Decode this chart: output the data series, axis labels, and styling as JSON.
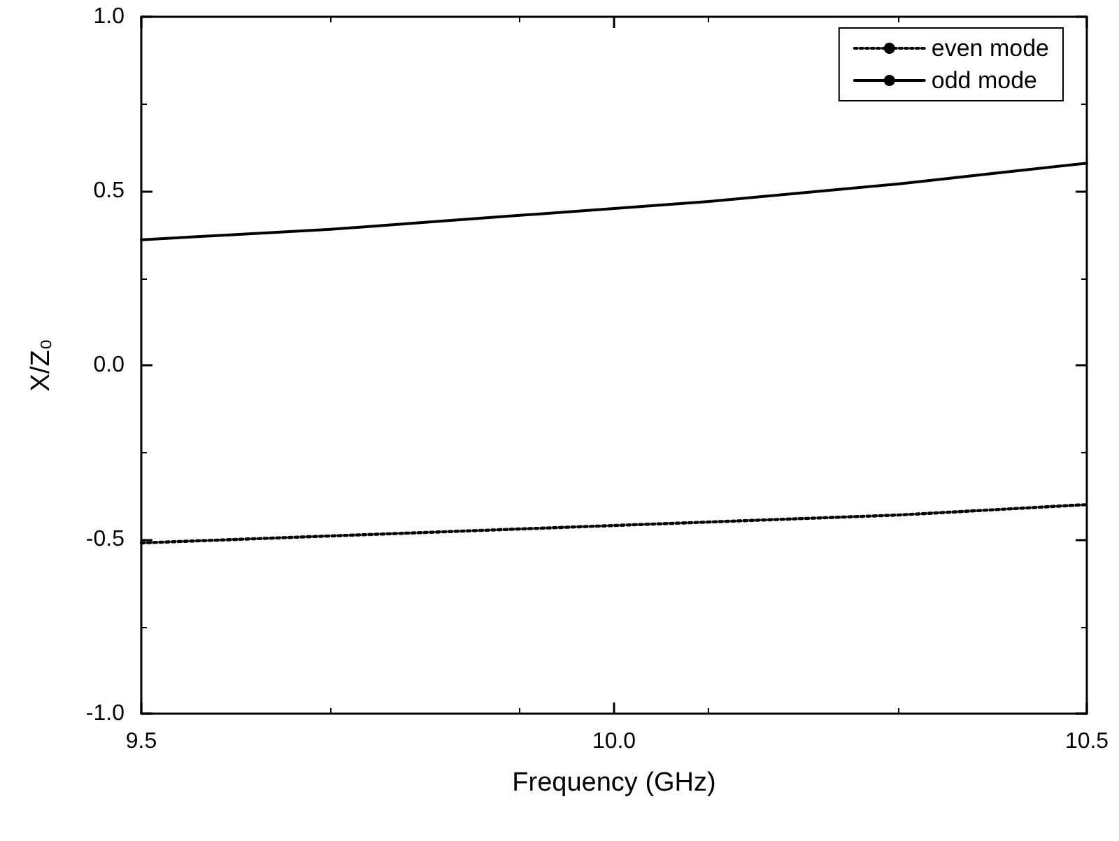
{
  "chart_data": {
    "type": "line",
    "xlabel": "Frequency (GHz)",
    "ylabel": "X/Z₀",
    "xlim": [
      9.5,
      10.5
    ],
    "xticks": [
      {
        "value": 9.5,
        "label": "9.5"
      },
      {
        "value": 10,
        "label": "10.0"
      },
      {
        "value": 10.5,
        "label": "10.5"
      }
    ],
    "ylim": [
      -1,
      1
    ],
    "yticks": [
      {
        "value": -1,
        "label": "-1.0"
      },
      {
        "value": -0.5,
        "label": "-0.5"
      },
      {
        "value": 0,
        "label": "0.0"
      },
      {
        "value": 0.5,
        "label": "0.5"
      },
      {
        "value": 1,
        "label": "1.0"
      }
    ],
    "x": [
      9.5,
      9.6,
      9.7,
      9.8,
      9.9,
      10,
      10.1,
      10.2,
      10.3,
      10.4,
      10.5
    ],
    "series": [
      {
        "name": "even mode",
        "color": "#000000",
        "line_style": "dotted",
        "values": [
          -0.51,
          -0.5,
          -0.49,
          -0.48,
          -0.47,
          -0.46,
          -0.45,
          -0.44,
          -0.43,
          -0.415,
          -0.4
        ]
      },
      {
        "name": "odd mode",
        "color": "#000000",
        "line_style": "solid",
        "values": [
          0.36,
          0.375,
          0.39,
          0.41,
          0.43,
          0.45,
          0.47,
          0.495,
          0.52,
          0.55,
          0.58
        ]
      }
    ],
    "grid": false,
    "legend": "top right",
    "marker": "none"
  }
}
